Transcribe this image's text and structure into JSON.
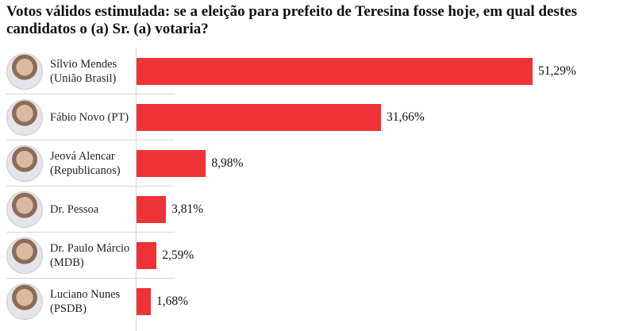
{
  "chart_data": {
    "type": "bar",
    "orientation": "horizontal",
    "title": "Votos válidos estimulada: se a eleição para prefeito de Teresina fosse hoje, em qual destes candidatos o (a) Sr. (a) votaria?",
    "categories": [
      [
        "Sílvio Mendes",
        "(União Brasil)"
      ],
      [
        "Fábio Novo (PT)"
      ],
      [
        "Jeová Alencar",
        "(Republicanos)"
      ],
      [
        "Dr. Pessoa"
      ],
      [
        "Dr. Paulo Márcio",
        "(MDB)"
      ],
      [
        "Luciano Nunes",
        "(PSDB)"
      ]
    ],
    "values": [
      51.29,
      31.66,
      8.98,
      3.81,
      2.59,
      1.68
    ],
    "labels": [
      "51,29%",
      "31,66%",
      "8,98%",
      "3,81%",
      "2,59%",
      "1,68%"
    ],
    "xlim": [
      0,
      51.29
    ],
    "grid": false,
    "bar_color": "#ee3338"
  }
}
